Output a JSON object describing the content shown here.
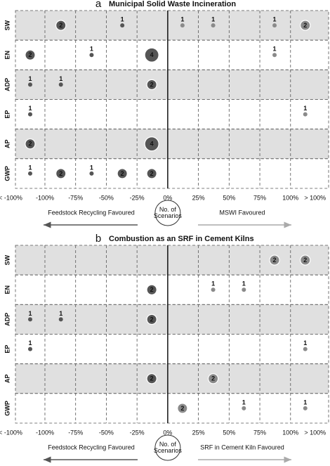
{
  "chart_data": [
    {
      "type": "scatter",
      "label": "a",
      "title": "Municipal Solid Waste Incineration",
      "categories": [
        "SW",
        "EN",
        "ADP",
        "EP",
        "AP",
        "GWP"
      ],
      "series": [
        {
          "x": [
            -87,
            -37,
            12,
            37,
            87,
            112
          ],
          "counts": [
            2,
            1,
            1,
            1,
            1,
            2
          ]
        },
        {
          "x": [
            -112,
            -62,
            -13,
            87
          ],
          "counts": [
            2,
            1,
            4,
            1
          ]
        },
        {
          "x": [
            -112,
            -87,
            -13
          ],
          "counts": [
            1,
            1,
            2
          ]
        },
        {
          "x": [
            -112,
            112
          ],
          "counts": [
            1,
            1
          ]
        },
        {
          "x": [
            -112,
            -13
          ],
          "counts": [
            2,
            4
          ]
        },
        {
          "x": [
            -112,
            -87,
            -62,
            -37,
            -13
          ],
          "counts": [
            1,
            2,
            1,
            2,
            2
          ]
        }
      ],
      "xlim": [
        -124,
        131
      ],
      "xticks": [
        {
          "value": -128,
          "label": "< -100%"
        },
        {
          "value": -100,
          "label": "-100%"
        },
        {
          "value": -75,
          "label": "-75%"
        },
        {
          "value": -50,
          "label": "-50%"
        },
        {
          "value": -25,
          "label": "-25%"
        },
        {
          "value": 0,
          "label": "0%"
        },
        {
          "value": 25,
          "label": "25%"
        },
        {
          "value": 50,
          "label": "50%"
        },
        {
          "value": 75,
          "label": "75%"
        },
        {
          "value": 100,
          "label": "100%"
        },
        {
          "value": 120,
          "label": "> 100%"
        }
      ],
      "annotations": {
        "left": "Feedstock Recycling Favoured",
        "center": "No. of Scenarios",
        "right": "MSWI Favoured"
      }
    },
    {
      "type": "scatter",
      "label": "b",
      "title": "Combustion as an SRF  in Cement Kilns",
      "categories": [
        "SW",
        "EN",
        "ADP",
        "EP",
        "AP",
        "GWP"
      ],
      "series": [
        {
          "x": [
            87,
            112
          ],
          "counts": [
            2,
            2
          ]
        },
        {
          "x": [
            -13,
            37,
            62
          ],
          "counts": [
            2,
            1,
            1
          ]
        },
        {
          "x": [
            -112,
            -87,
            -13
          ],
          "counts": [
            1,
            1,
            2
          ]
        },
        {
          "x": [
            -112,
            112
          ],
          "counts": [
            1,
            1
          ]
        },
        {
          "x": [
            -13,
            37
          ],
          "counts": [
            2,
            2
          ]
        },
        {
          "x": [
            12,
            62,
            112
          ],
          "counts": [
            2,
            1,
            1
          ]
        }
      ],
      "xlim": [
        -124,
        131
      ],
      "xticks": [
        {
          "value": -128,
          "label": "< -100%"
        },
        {
          "value": -100,
          "label": "-100%"
        },
        {
          "value": -75,
          "label": "-75%"
        },
        {
          "value": -50,
          "label": "-50%"
        },
        {
          "value": -25,
          "label": "-25%"
        },
        {
          "value": 0,
          "label": "0%"
        },
        {
          "value": 25,
          "label": "25%"
        },
        {
          "value": 50,
          "label": "50%"
        },
        {
          "value": 75,
          "label": "75%"
        },
        {
          "value": 100,
          "label": "100%"
        },
        {
          "value": 120,
          "label": "> 100%"
        }
      ],
      "annotations": {
        "left": "Feedstock Recycling Favoured",
        "center": "No. of Scenarios",
        "right": "SRF in Cement Kiln Favoured"
      }
    }
  ]
}
